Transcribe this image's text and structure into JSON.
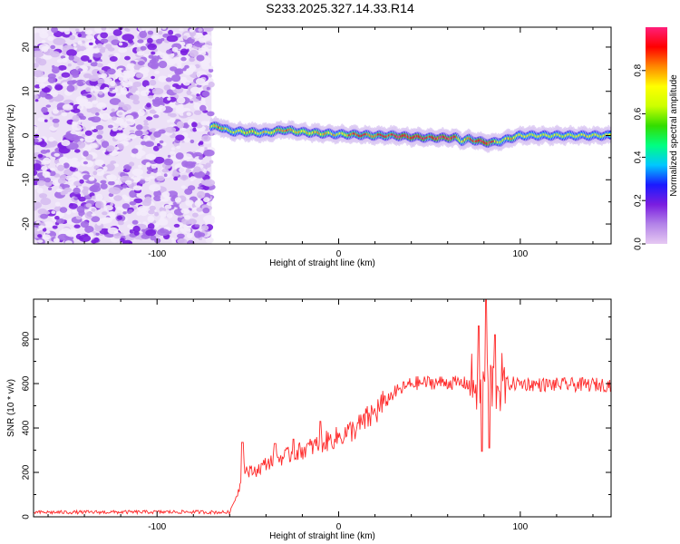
{
  "title": "S233.2025.327.14.33.R14",
  "chart_data": [
    {
      "type": "heatmap",
      "xlabel": "Height of straight line (km)",
      "ylabel": "Frequency (Hz)",
      "xlim": [
        -168,
        150
      ],
      "ylim": [
        -24.5,
        24.5
      ],
      "xticks": [
        -100,
        0,
        100
      ],
      "yticks": [
        -20,
        -10,
        0,
        10,
        20
      ],
      "noise_region_x": [
        -168,
        -70
      ],
      "ridge": {
        "x": [
          -70,
          -65,
          -60,
          -50,
          -40,
          -30,
          -20,
          -10,
          0,
          10,
          20,
          30,
          40,
          50,
          60,
          65,
          68,
          72,
          80,
          85,
          90,
          95,
          100,
          110,
          120,
          130,
          140,
          150
        ],
        "freq": [
          2.0,
          2.0,
          1.0,
          0.8,
          0.6,
          1.3,
          0.8,
          0.5,
          0.3,
          0.2,
          0.0,
          0.0,
          -0.3,
          -0.5,
          -0.5,
          -0.5,
          -1.2,
          -0.8,
          -1.5,
          -1.6,
          -1.2,
          -0.6,
          0.0,
          0.0,
          0.0,
          0.0,
          0.0,
          0.0
        ],
        "amplitude": [
          0.7,
          0.85,
          0.6,
          0.8,
          0.7,
          0.85,
          0.75,
          0.8,
          0.7,
          0.9,
          0.85,
          0.9,
          0.95,
          0.9,
          0.95,
          0.9,
          0.7,
          0.85,
          0.95,
          0.9,
          0.6,
          0.8,
          0.7,
          0.7,
          0.65,
          0.7,
          0.7,
          0.7
        ]
      },
      "colorbar": {
        "label": "Normalized spectral amplitude",
        "range": [
          0.0,
          1.0
        ],
        "ticks": [
          "0.0",
          "0.2",
          "0.4",
          "0.6",
          "0.8"
        ],
        "stops": [
          "#e6c9f2",
          "#b383e8",
          "#7a1de0",
          "#1a1aff",
          "#00c8ff",
          "#00ff80",
          "#33dd00",
          "#ccff00",
          "#ffff00",
          "#ff8800",
          "#ff0000",
          "#ff1f7a"
        ]
      }
    },
    {
      "type": "line",
      "xlabel": "Height of straight line (km)",
      "ylabel": "SNR (10 * v/v)",
      "xlim": [
        -168,
        150
      ],
      "ylim": [
        0,
        980
      ],
      "xticks": [
        -100,
        0,
        100
      ],
      "yticks": [
        0,
        200,
        400,
        600,
        800
      ],
      "color": "#ff2a2a",
      "envelope": {
        "x": [
          -168,
          -80,
          -60,
          -55,
          -52,
          -50,
          -45,
          -40,
          -35,
          -30,
          -20,
          -10,
          0,
          10,
          20,
          30,
          40,
          50,
          60,
          70,
          75,
          80,
          85,
          90,
          100,
          110,
          120,
          130,
          140,
          150
        ],
        "y": [
          20,
          22,
          20,
          120,
          230,
          200,
          210,
          240,
          260,
          270,
          300,
          330,
          360,
          400,
          470,
          555,
          600,
          605,
          605,
          600,
          600,
          600,
          600,
          600,
          600,
          595,
          595,
          595,
          595,
          595
        ]
      },
      "spikes": [
        {
          "x": -53,
          "y": 335
        },
        {
          "x": -35,
          "y": 330
        },
        {
          "x": -25,
          "y": 350
        },
        {
          "x": -10,
          "y": 430
        },
        {
          "x": 77,
          "y": 860
        },
        {
          "x": 79,
          "y": 295
        },
        {
          "x": 81,
          "y": 980
        },
        {
          "x": 83,
          "y": 310
        },
        {
          "x": 86,
          "y": 820
        }
      ]
    }
  ]
}
